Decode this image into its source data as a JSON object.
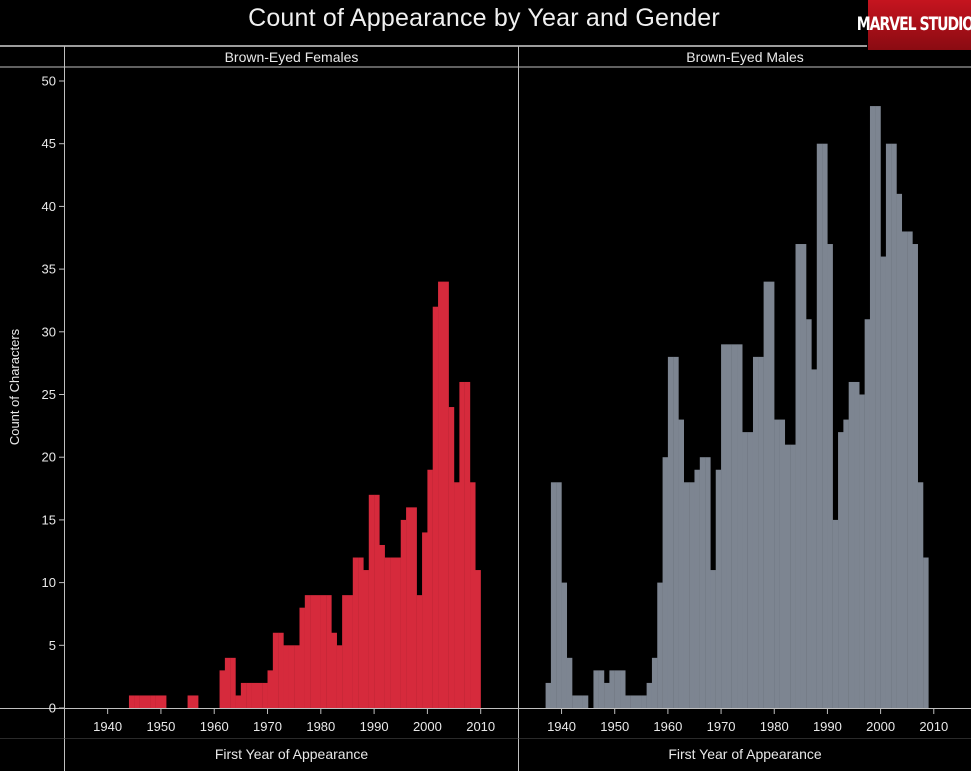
{
  "header": {
    "title": "Count of Appearance by Year and Gender",
    "logo_text": "MARVEL STUDIOS"
  },
  "colors": {
    "background": "#000000",
    "females": "#d62a3c",
    "males": "#7d8591",
    "text": "#e8e8e8",
    "rules": "#bfbfbf"
  },
  "chart_data": {
    "type": "bar",
    "title": "Count of Appearance by Year and Gender",
    "xlabel": "First Year of Appearance",
    "ylabel": "Count of Characters",
    "xlim": [
      1932,
      2017
    ],
    "ylim": [
      0,
      50
    ],
    "x_ticks": [
      1940,
      1950,
      1960,
      1970,
      1980,
      1990,
      2000,
      2010
    ],
    "y_ticks": [
      0,
      5,
      10,
      15,
      20,
      25,
      30,
      35,
      40,
      45,
      50
    ],
    "grid": false,
    "panels": [
      {
        "name": "Brown-Eyed Females",
        "color": "#d62a3c",
        "years": [
          1944,
          1945,
          1946,
          1947,
          1948,
          1949,
          1950,
          1955,
          1956,
          1961,
          1962,
          1963,
          1964,
          1965,
          1966,
          1967,
          1968,
          1969,
          1970,
          1971,
          1972,
          1973,
          1974,
          1975,
          1976,
          1977,
          1978,
          1979,
          1980,
          1981,
          1982,
          1983,
          1984,
          1985,
          1986,
          1987,
          1988,
          1989,
          1990,
          1991,
          1992,
          1993,
          1994,
          1995,
          1996,
          1997,
          1998,
          1999,
          2000,
          2001,
          2002,
          2003,
          2004,
          2005,
          2006,
          2007,
          2008,
          2009,
          2010,
          2011,
          2012,
          2013
        ],
        "values": [
          1,
          1,
          1,
          1,
          1,
          1,
          1,
          1,
          1,
          3,
          4,
          4,
          1,
          2,
          2,
          2,
          2,
          2,
          3,
          6,
          6,
          5,
          5,
          5,
          8,
          9,
          9,
          9,
          9,
          9,
          6,
          5,
          9,
          9,
          12,
          12,
          11,
          17,
          17,
          13,
          12,
          12,
          12,
          15,
          16,
          16,
          9,
          14,
          19,
          32,
          34,
          34,
          24,
          18,
          26,
          26,
          18,
          11,
          0,
          0,
          0,
          0
        ],
        "trim_tail": 4
      },
      {
        "name": "Brown-Eyed Males",
        "color": "#7d8591",
        "years": [
          1937,
          1938,
          1939,
          1940,
          1941,
          1942,
          1943,
          1944,
          1945,
          1946,
          1947,
          1948,
          1949,
          1950,
          1951,
          1952,
          1953,
          1954,
          1955,
          1956,
          1957,
          1958,
          1959,
          1960,
          1961,
          1962,
          1963,
          1964,
          1965,
          1966,
          1967,
          1968,
          1969,
          1970,
          1971,
          1972,
          1973,
          1974,
          1975,
          1976,
          1977,
          1978,
          1979,
          1980,
          1981,
          1982,
          1983,
          1984,
          1985,
          1986,
          1987,
          1988,
          1989,
          1990,
          1991,
          1992,
          1993,
          1994,
          1995,
          1996,
          1997,
          1998,
          1999,
          2000,
          2001,
          2002,
          2003,
          2004,
          2005,
          2006,
          2007,
          2008,
          2009,
          2010,
          2011,
          2012,
          2013
        ],
        "values": [
          2,
          18,
          18,
          10,
          4,
          1,
          1,
          1,
          0,
          3,
          3,
          2,
          3,
          3,
          3,
          1,
          1,
          1,
          1,
          2,
          4,
          10,
          20,
          28,
          28,
          23,
          18,
          18,
          19,
          20,
          20,
          11,
          19,
          29,
          29,
          29,
          29,
          22,
          22,
          28,
          28,
          34,
          34,
          23,
          23,
          21,
          21,
          37,
          37,
          31,
          27,
          45,
          45,
          37,
          15,
          22,
          23,
          26,
          26,
          25,
          31,
          48,
          48,
          36,
          45,
          45,
          41,
          38,
          38,
          37,
          18,
          12,
          0,
          0,
          0,
          0,
          0
        ],
        "trim_tail": 5
      }
    ]
  }
}
